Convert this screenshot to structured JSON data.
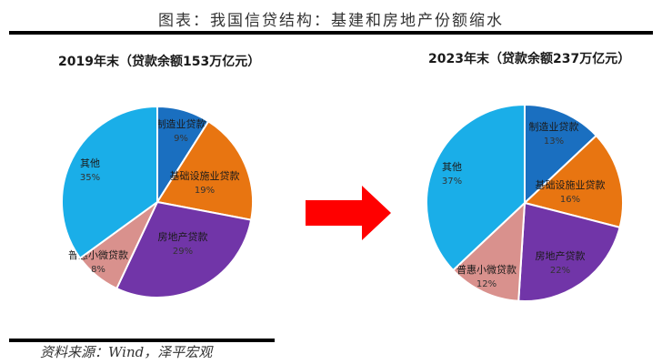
{
  "title": "图表：我国信贷结构：基建和房地产份额缩水",
  "source": "资料来源：Wind，泽平宏观",
  "colors": {
    "manufacturing": "#1a6fc0",
    "infrastructure": "#e87511",
    "real_estate": "#7135a8",
    "inclusive_micro": "#d9918d",
    "other": "#1aaee8",
    "arrow": "#ff0000"
  },
  "chart_data": [
    {
      "type": "pie",
      "title": "2019年末（贷款余额153万亿元）",
      "categories": [
        "制造业贷款",
        "基础设施业贷款",
        "房地产贷款",
        "普惠小微贷款",
        "其他"
      ],
      "values": [
        9,
        19,
        29,
        8,
        35
      ],
      "labels": [
        "9%",
        "19%",
        "29%",
        "8%",
        "35%"
      ],
      "unit": "%",
      "start_angle": "12 o'clock",
      "direction": "clockwise",
      "legend": "none (inline labels)"
    },
    {
      "type": "pie",
      "title": "2023年末（贷款余额237万亿元）",
      "categories": [
        "制造业贷款",
        "基础设施业贷款",
        "房地产贷款",
        "普惠小微贷款",
        "其他"
      ],
      "values": [
        13,
        16,
        22,
        12,
        37
      ],
      "labels": [
        "13%",
        "16%",
        "22%",
        "12%",
        "37%"
      ],
      "unit": "%",
      "start_angle": "12 o'clock",
      "direction": "clockwise",
      "legend": "none (inline labels)"
    }
  ]
}
